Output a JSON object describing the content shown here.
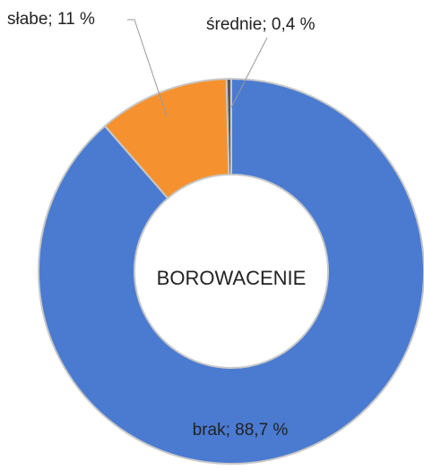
{
  "chart_data": {
    "type": "donut",
    "title": "BOROWACENIE",
    "values": [
      88.7,
      11,
      0.4
    ],
    "value_labels": [
      "brak; 88,7 %",
      "słabe; 11 %",
      "średnie; 0,4 %"
    ],
    "colors": [
      "#4a7bd1",
      "#f5922f",
      "#5b5b5b"
    ]
  }
}
